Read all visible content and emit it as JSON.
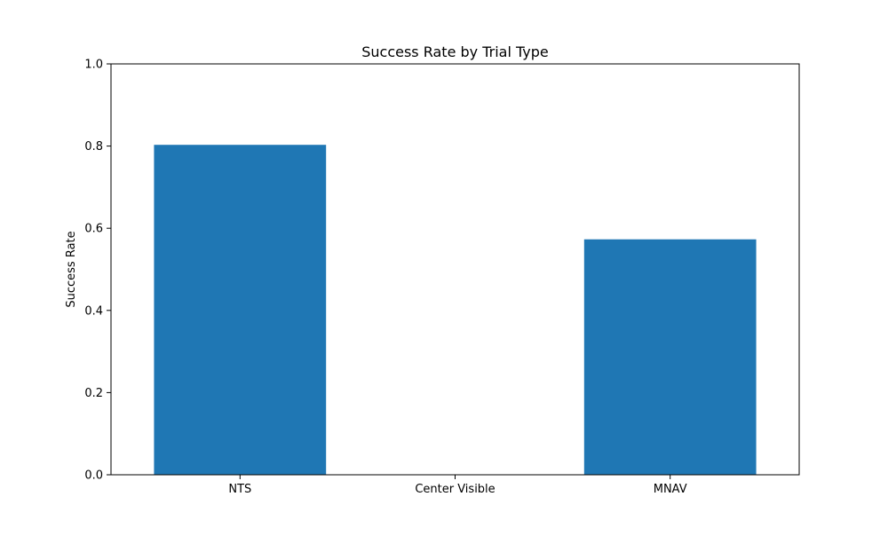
{
  "chart_data": {
    "type": "bar",
    "title": "Success Rate by Trial Type",
    "xlabel": "",
    "ylabel": "Success Rate",
    "categories": [
      "NTS",
      "Center Visible",
      "MNAV"
    ],
    "values": [
      0.803,
      0.0,
      0.573
    ],
    "ylim": [
      0,
      1.0
    ],
    "yticks": [
      "0.0",
      "0.2",
      "0.4",
      "0.6",
      "0.8",
      "1.0"
    ],
    "bar_color": "#1f77b4",
    "grid": false,
    "legend": "none"
  }
}
